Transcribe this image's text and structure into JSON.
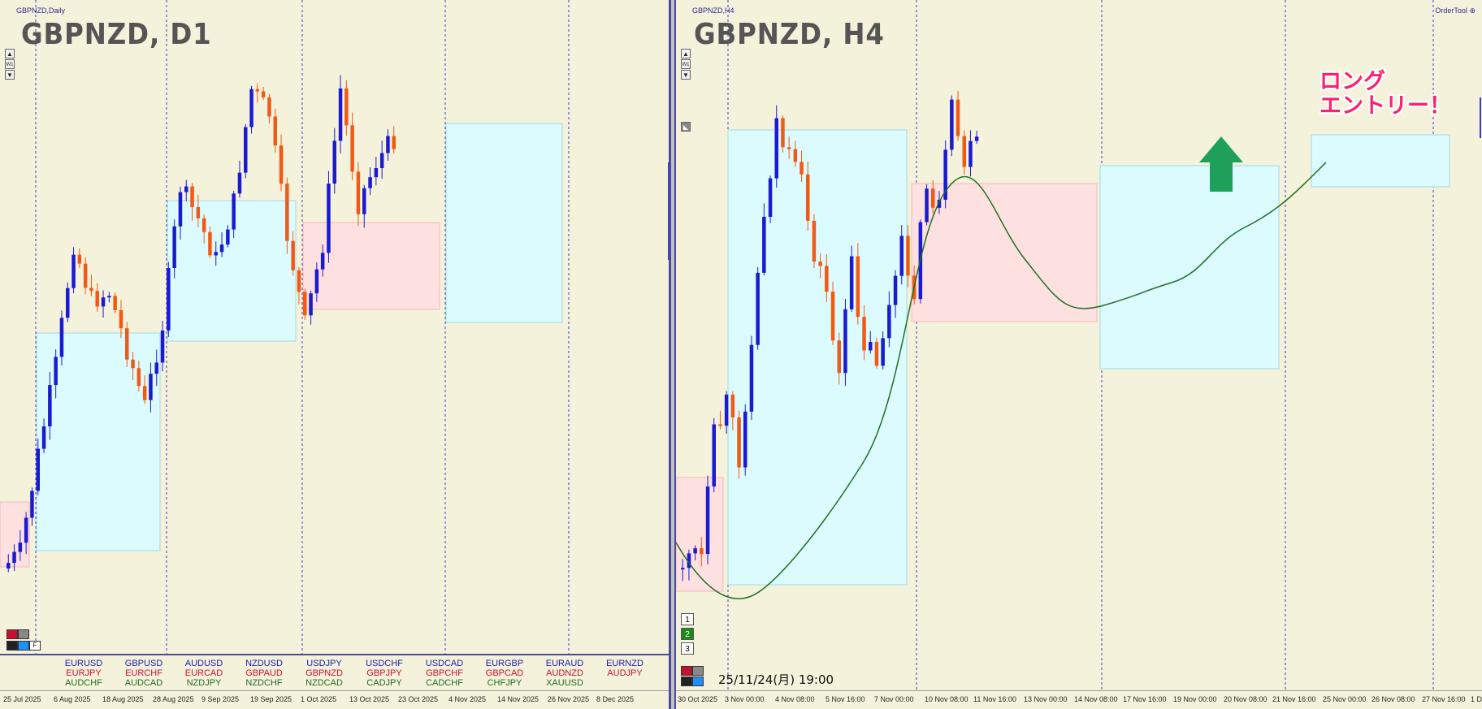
{
  "colors": {
    "background": "#f5f2dc",
    "bull": "#1a1ad0",
    "bear": "#f05a14",
    "blue_box": "#dcfbff",
    "pink_box": "#fde0e0",
    "sep_line": "#4a4aa0",
    "ma": "#1f6f1f",
    "arrow": "#1fa05a",
    "entry_text": "#ff1f6e"
  },
  "left_chart": {
    "window_name": "GBPNZD,Daily",
    "title": "GBPNZD, D1",
    "side_buttons": [
      "▲",
      "W1",
      "▼"
    ],
    "dates": [
      "25 Jul 2025",
      "6 Aug 2025",
      "18 Aug 2025",
      "28 Aug 2025",
      "9 Sep 2025",
      "19 Sep 2025",
      "1 Oct 2025",
      "13 Oct 2025",
      "23 Oct 2025",
      "4 Nov 2025",
      "14 Nov 2025",
      "26 Nov 2025",
      "8 Dec 2025"
    ],
    "pair_columns": [
      [
        {
          "t": "EURUSD",
          "c": "blue"
        },
        {
          "t": "EURJPY",
          "c": "red"
        },
        {
          "t": "AUDCHF",
          "c": "green"
        }
      ],
      [
        {
          "t": "GBPUSD",
          "c": "blue"
        },
        {
          "t": "EURCHF",
          "c": "red"
        },
        {
          "t": "AUDCAD",
          "c": "green"
        }
      ],
      [
        {
          "t": "AUDUSD",
          "c": "blue"
        },
        {
          "t": "EURCAD",
          "c": "red"
        },
        {
          "t": "NZDJPY",
          "c": "green"
        }
      ],
      [
        {
          "t": "NZDUSD",
          "c": "blue"
        },
        {
          "t": "GBPAUD",
          "c": "red"
        },
        {
          "t": "NZDCHF",
          "c": "green"
        }
      ],
      [
        {
          "t": "USDJPY",
          "c": "blue"
        },
        {
          "t": "GBPNZD",
          "c": "red"
        },
        {
          "t": "NZDCAD",
          "c": "green"
        }
      ],
      [
        {
          "t": "USDCHF",
          "c": "blue"
        },
        {
          "t": "GBPJPY",
          "c": "red"
        },
        {
          "t": "CADJPY",
          "c": "green"
        }
      ],
      [
        {
          "t": "USDCAD",
          "c": "blue"
        },
        {
          "t": "GBPCHF",
          "c": "red"
        },
        {
          "t": "CADCHF",
          "c": "green"
        }
      ],
      [
        {
          "t": "EURGBP",
          "c": "blue"
        },
        {
          "t": "GBPCAD",
          "c": "red"
        },
        {
          "t": "CHFJPY",
          "c": "green"
        }
      ],
      [
        {
          "t": "EURAUD",
          "c": "blue"
        },
        {
          "t": "AUDNZD",
          "c": "red"
        },
        {
          "t": "XAUUSD",
          "c": "green"
        }
      ],
      [
        {
          "t": "EURNZD",
          "c": "blue"
        },
        {
          "t": "AUDJPY",
          "c": "red"
        }
      ]
    ]
  },
  "right_chart": {
    "window_name": "GBPNZD,H4",
    "title": "GBPNZD, H4",
    "order_tool": "OrderTool",
    "side_buttons": [
      "▲",
      "W1",
      "▼"
    ],
    "dates": [
      "30 Oct 2025",
      "3 Nov 00:00",
      "4 Nov 08:00",
      "5 Nov 16:00",
      "7 Nov 00:00",
      "10 Nov 08:00",
      "11 Nov 16:00",
      "13 Nov 00:00",
      "14 Nov 08:00",
      "17 Nov 16:00",
      "19 Nov 00:00",
      "20 Nov 08:00",
      "21 Nov 16:00",
      "25 Nov 00:00",
      "26 Nov 08:00",
      "27 Nov 16:00",
      "1 D"
    ],
    "period_buttons": [
      "1",
      "2",
      "3"
    ],
    "timestamp": "25/11/24(月) 19:00",
    "entry_label_line1": "ロング",
    "entry_label_line2": "エントリー！"
  }
}
